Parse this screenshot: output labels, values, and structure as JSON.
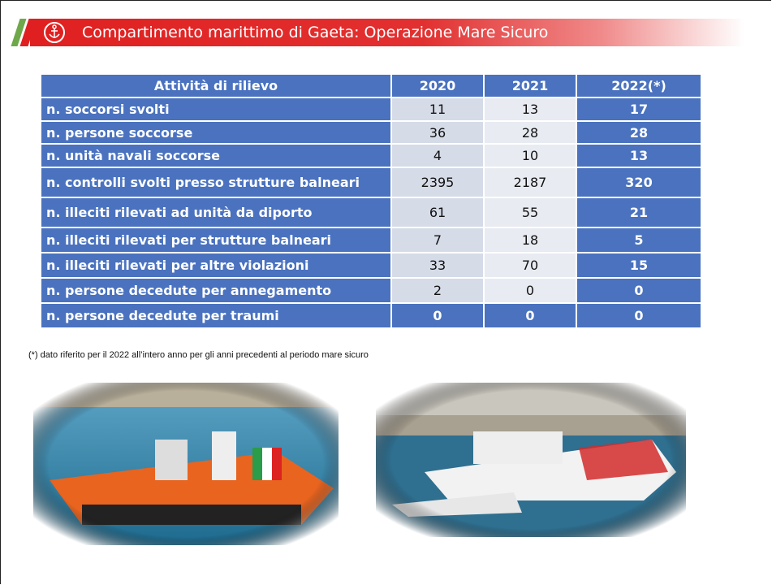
{
  "header": {
    "title": "Compartimento marittimo di Gaeta: Operazione Mare Sicuro"
  },
  "table": {
    "columns": [
      "Attività di rilievo",
      "2020",
      "2021",
      "2022(*)"
    ],
    "rows": [
      [
        "n. soccorsi svolti",
        11,
        13,
        17
      ],
      [
        "n. persone soccorse",
        36,
        28,
        28
      ],
      [
        "n. unità navali soccorse",
        4,
        10,
        13
      ],
      [
        "n. controlli svolti presso strutture balneari",
        2395,
        2187,
        320
      ],
      [
        "n. illeciti rilevati ad unità da diporto",
        61,
        55,
        21
      ],
      [
        "n. illeciti rilevati per strutture balneari",
        7,
        18,
        5
      ],
      [
        "n. illeciti rilevati per altre violazioni",
        33,
        70,
        15
      ],
      [
        "n. persone decedute per annegamento",
        2,
        0,
        0
      ],
      [
        "n. persone decedute per traumi",
        0,
        0,
        0
      ]
    ]
  },
  "footnote": "(*) dato riferito per il 2022 all’intero anno per gli anni precedenti al periodo mare sicuro"
}
